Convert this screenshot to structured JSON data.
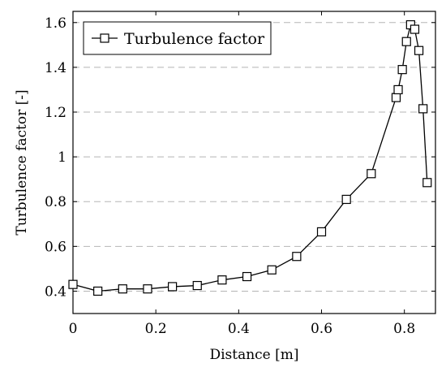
{
  "chart_data": {
    "type": "line",
    "xlabel": "Distance [m]",
    "ylabel": "Turbulence factor [-]",
    "xlim": [
      0,
      0.875
    ],
    "ylim": [
      0.3,
      1.65
    ],
    "x_ticks": [
      0,
      0.2,
      0.4,
      0.6,
      0.8
    ],
    "x_tick_labels": [
      "0",
      "0.2",
      "0.4",
      "0.6",
      "0.8"
    ],
    "y_ticks": [
      0.4,
      0.6,
      0.8,
      1.0,
      1.2,
      1.4,
      1.6
    ],
    "y_tick_labels": [
      "0.4",
      "0.6",
      "0.8",
      "1",
      "1.2",
      "1.4",
      "1.6"
    ],
    "grid": "horizontal-dashed",
    "legend_position": "top-left",
    "marker": "square",
    "series": [
      {
        "name": "Turbulence factor",
        "color": "#000000",
        "x": [
          0,
          0.06,
          0.12,
          0.18,
          0.24,
          0.3,
          0.36,
          0.42,
          0.48,
          0.54,
          0.6,
          0.66,
          0.72,
          0.78,
          0.785,
          0.795,
          0.805,
          0.815,
          0.825,
          0.835,
          0.845,
          0.855
        ],
        "y": [
          0.43,
          0.4,
          0.41,
          0.41,
          0.42,
          0.425,
          0.45,
          0.465,
          0.495,
          0.555,
          0.665,
          0.81,
          0.925,
          1.265,
          1.3,
          1.39,
          1.515,
          1.59,
          1.57,
          1.475,
          1.215,
          0.885
        ]
      }
    ]
  }
}
